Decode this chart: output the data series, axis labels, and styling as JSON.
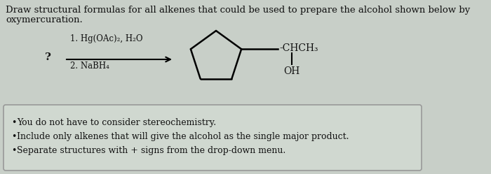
{
  "bg_color": "#c8cfc8",
  "box_bg_color": "#d0d8d0",
  "title_text1": "Draw structural formulas for all alkenes that could be used to prepare the alcohol shown below by",
  "title_text2": "oxymercuration.",
  "title_fontsize": 9.5,
  "title_color": "#111111",
  "question_mark": "?",
  "reaction_line1": "1. Hg(OAc)₂, H₂O",
  "reaction_line2": "2. NaBH₄",
  "chch3_text": "-CHCH₃",
  "oh_text": "OH",
  "bullet1": "You do not have to consider stereochemistry.",
  "bullet2": "Include only alkenes that will give the alcohol as the single major product.",
  "bullet3": "Separate structures with + signs from the drop-down menu.",
  "bullet_fontsize": 9.0,
  "box_border_color": "#999999",
  "text_color": "#111111",
  "reaction_fontsize": 8.5
}
